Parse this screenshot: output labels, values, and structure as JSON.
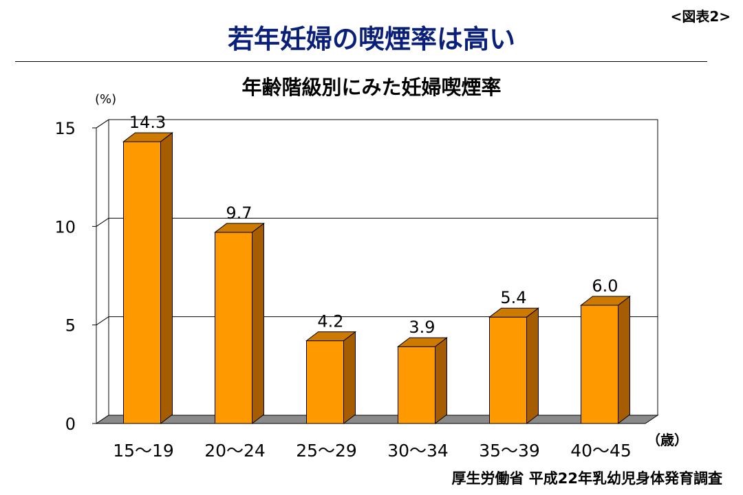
{
  "figure_label": "<図表2>",
  "title": "若年妊婦の喫煙率は高い",
  "source": "厚生労働省 平成22年乳幼児身体発育調査",
  "colors": {
    "bar_front": "#ff9900",
    "bar_side": "#a65c00",
    "bar_top": "#cc7a00",
    "floor": "#8a8a8a",
    "title": "#0a1f7a"
  },
  "chart_data": {
    "type": "bar",
    "title": "年齢階級別にみた妊婦喫煙率",
    "ylabel": "(%)",
    "xlabel": "（歳）",
    "categories": [
      "15〜19",
      "20〜24",
      "25〜29",
      "30〜34",
      "35〜39",
      "40〜45"
    ],
    "values": [
      14.3,
      9.7,
      4.2,
      3.9,
      5.4,
      6.0
    ],
    "value_labels": [
      "14.3",
      "9.7",
      "4.2",
      "3.9",
      "5.4",
      "6.0"
    ],
    "yticks": [
      "0",
      "5",
      "10",
      "15"
    ],
    "ylim": [
      0,
      15
    ],
    "grid": true,
    "style": "3d"
  }
}
